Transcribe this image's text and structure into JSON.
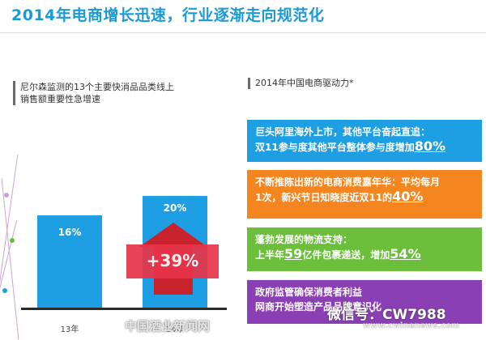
{
  "title": "2014年电商增长迅速，行业逐渐走向规范化",
  "left_panel": {
    "caption_line1": "尼尔森监测的13个主要快消品品类线上",
    "caption_line2": "销售额重要性急增速",
    "bars": [
      {
        "label": "13年",
        "value_text": "16%",
        "value": 16
      },
      {
        "label": "14年",
        "value_text": "20%",
        "value": 20
      }
    ],
    "growth": "+39%",
    "colors": {
      "bar": "#1e9fe3",
      "growth": "#e8344a",
      "arrow": "#c8232c"
    }
  },
  "right_panel": {
    "heading": "2014年中国电商驱动力*",
    "cards": [
      {
        "line1": "巨头阿里海外上市，其他平台奋起直追：",
        "line2_prefix": "双11参与度其他平台整体参与度增加",
        "highlight": "80%",
        "color": "#1e9fe3"
      },
      {
        "line1": "不断推陈出新的电商消费嘉年华：平均每月",
        "line2_prefix": "1次，新兴节日知晓度近双11的",
        "highlight": "40%",
        "color": "#f5861f"
      },
      {
        "line1": "蓬勃发展的物流支持：",
        "line2_prefix": "上半年",
        "highlight_a": "59",
        "line2_mid": "亿件包裹递送，增加",
        "highlight": "54%",
        "color": "#6bbf3b"
      },
      {
        "line1": "政府监管确保消费者利益",
        "line2_prefix": "网商开始塑造产品品牌意识化",
        "color": "#8b3fb4"
      }
    ]
  },
  "watermarks": {
    "logo": "微信号：CW7988",
    "site": "中国酒业新闻网",
    "url": "www.cwinenews.com"
  }
}
